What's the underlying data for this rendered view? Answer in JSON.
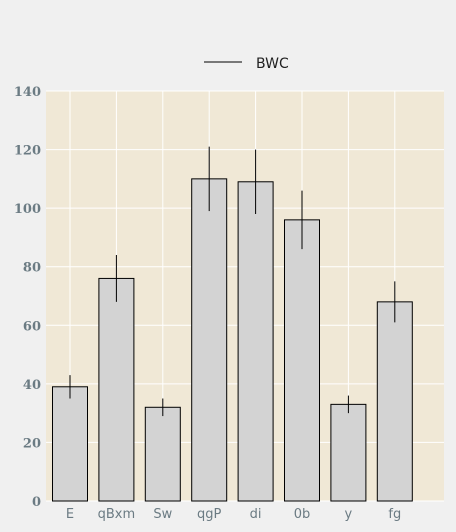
{
  "chart_data": {
    "type": "bar",
    "categories": [
      "E",
      "qBxm",
      "Sw",
      "qgP",
      "di",
      "0b",
      "y",
      "fg"
    ],
    "series": [
      {
        "name": "BWC",
        "values": [
          39,
          76,
          32,
          110,
          109,
          96,
          33,
          68
        ],
        "error": [
          4,
          8,
          3,
          11,
          11,
          10,
          3,
          7
        ]
      }
    ],
    "title": "",
    "xlabel": "",
    "ylabel": "",
    "ylim": [
      0,
      140
    ],
    "yticks": [
      "0",
      "20",
      "40",
      "60",
      "80",
      "100",
      "120",
      "140"
    ],
    "grid": true,
    "legend": "top-center",
    "colors": {
      "plot_background": "#f0e8d6",
      "page_background": "#f0f0f0",
      "bar_fill": "#d3d3d3",
      "bar_edge": "#000000",
      "error_bar": "#000000",
      "grid": "#ffffff",
      "tick_text": "#6b7b83"
    }
  }
}
